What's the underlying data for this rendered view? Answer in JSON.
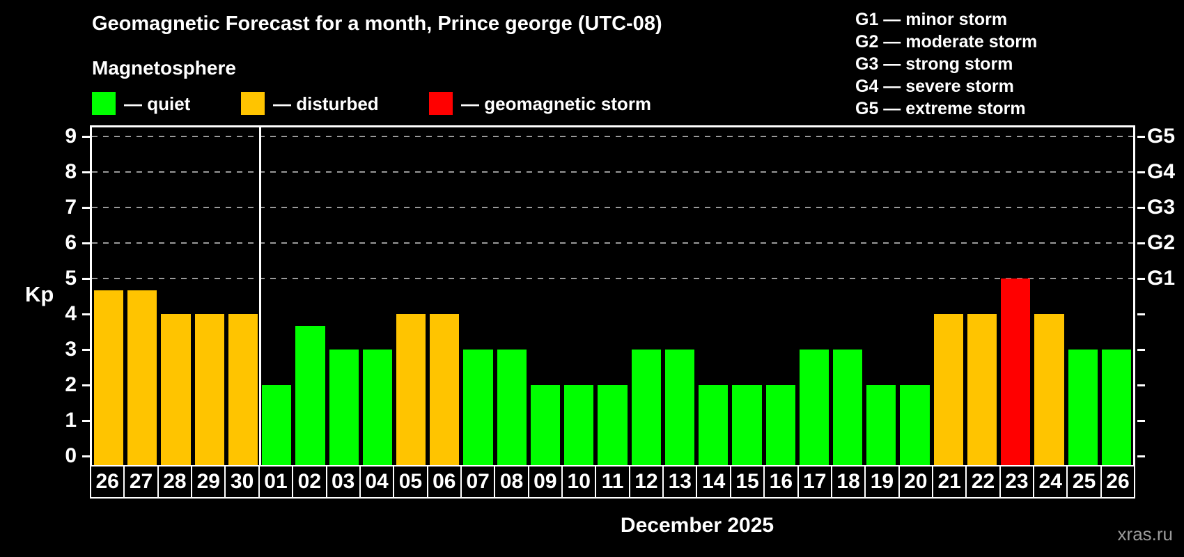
{
  "header": {
    "title": "Geomagnetic Forecast for a month, Prince george (UTC-08)",
    "subtitle": "Magnetosphere"
  },
  "legend": {
    "items": [
      {
        "state": "quiet",
        "label": "— quiet"
      },
      {
        "state": "disturbed",
        "label": "— disturbed"
      },
      {
        "state": "storm",
        "label": "— geomagnetic storm"
      }
    ]
  },
  "g_legend": [
    "G1 — minor storm",
    "G2 — moderate storm",
    "G3 — strong storm",
    "G4 — severe storm",
    "G5 — extreme storm"
  ],
  "colors": {
    "quiet": "#00ff00",
    "disturbed": "#ffc400",
    "storm": "#ff0000",
    "grid": "#999999",
    "axis": "#ffffff",
    "background": "#000000",
    "watermark": "#9b9b9b"
  },
  "watermark": "xras.ru",
  "chart_data": {
    "type": "bar",
    "title": "Geomagnetic Forecast for a month, Prince george (UTC-08)",
    "ylabel": "Kp",
    "xlabel": "December 2025",
    "ylim": [
      0,
      9.3
    ],
    "yticks": [
      0,
      1,
      2,
      3,
      4,
      5,
      6,
      7,
      8,
      9
    ],
    "grid": "dashed horizontal lines at Kp 5-9",
    "legend_position": "top",
    "right_axis": [
      {
        "kp": 5,
        "label": "G1"
      },
      {
        "kp": 6,
        "label": "G2"
      },
      {
        "kp": 7,
        "label": "G3"
      },
      {
        "kp": 8,
        "label": "G4"
      },
      {
        "kp": 9,
        "label": "G5"
      }
    ],
    "month_divider_after_index": 5,
    "bars": [
      {
        "day": "26",
        "kp": 4.67,
        "state": "disturbed"
      },
      {
        "day": "27",
        "kp": 4.67,
        "state": "disturbed"
      },
      {
        "day": "28",
        "kp": 4,
        "state": "disturbed"
      },
      {
        "day": "29",
        "kp": 4,
        "state": "disturbed"
      },
      {
        "day": "30",
        "kp": 4,
        "state": "disturbed"
      },
      {
        "day": "01",
        "kp": 2,
        "state": "quiet"
      },
      {
        "day": "02",
        "kp": 3.67,
        "state": "quiet"
      },
      {
        "day": "03",
        "kp": 3,
        "state": "quiet"
      },
      {
        "day": "04",
        "kp": 3,
        "state": "quiet"
      },
      {
        "day": "05",
        "kp": 4,
        "state": "disturbed"
      },
      {
        "day": "06",
        "kp": 4,
        "state": "disturbed"
      },
      {
        "day": "07",
        "kp": 3,
        "state": "quiet"
      },
      {
        "day": "08",
        "kp": 3,
        "state": "quiet"
      },
      {
        "day": "09",
        "kp": 2,
        "state": "quiet"
      },
      {
        "day": "10",
        "kp": 2,
        "state": "quiet"
      },
      {
        "day": "11",
        "kp": 2,
        "state": "quiet"
      },
      {
        "day": "12",
        "kp": 3,
        "state": "quiet"
      },
      {
        "day": "13",
        "kp": 3,
        "state": "quiet"
      },
      {
        "day": "14",
        "kp": 2,
        "state": "quiet"
      },
      {
        "day": "15",
        "kp": 2,
        "state": "quiet"
      },
      {
        "day": "16",
        "kp": 2,
        "state": "quiet"
      },
      {
        "day": "17",
        "kp": 3,
        "state": "quiet"
      },
      {
        "day": "18",
        "kp": 3,
        "state": "quiet"
      },
      {
        "day": "19",
        "kp": 2,
        "state": "quiet"
      },
      {
        "day": "20",
        "kp": 2,
        "state": "quiet"
      },
      {
        "day": "21",
        "kp": 4,
        "state": "disturbed"
      },
      {
        "day": "22",
        "kp": 4,
        "state": "disturbed"
      },
      {
        "day": "23",
        "kp": 5,
        "state": "storm"
      },
      {
        "day": "24",
        "kp": 4,
        "state": "disturbed"
      },
      {
        "day": "25",
        "kp": 3,
        "state": "quiet"
      },
      {
        "day": "26",
        "kp": 3,
        "state": "quiet"
      }
    ]
  }
}
